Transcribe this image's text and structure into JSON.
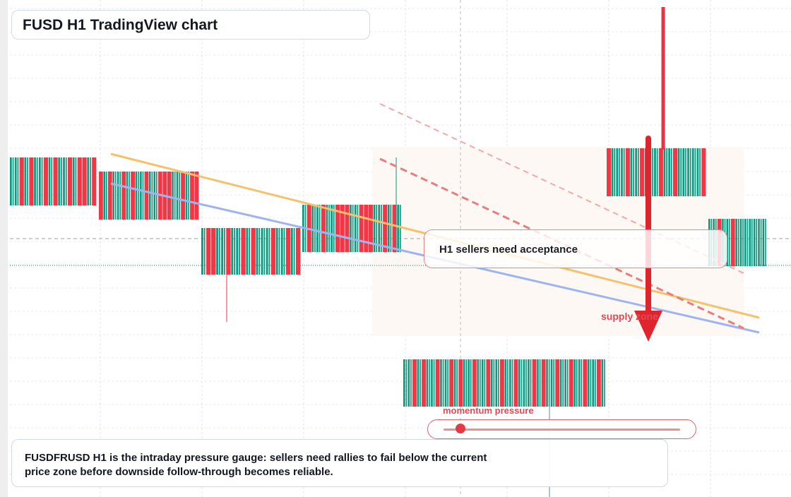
{
  "title": "FUSD H1 TradingView chart",
  "callout": "H1 sellers need acceptance",
  "zone_label": "supply zone",
  "momentum": {
    "label": "momentum pressure",
    "level": 0.07
  },
  "note": "FUSDFRUSD H1 is the intraday pressure gauge: sellers need rallies to fail below the current price zone before downside follow-through becomes reliable.",
  "colors": {
    "bull": "#089981",
    "bear": "#f23645",
    "trend_orange": "#f7c06a",
    "trend_blue": "#9db4f0",
    "channel_red": "#e87d7d",
    "arrow_red": "#e0242e",
    "zone_fill": "#fdf8f4"
  },
  "chart_data": {
    "type": "candlestick",
    "timeframe": "H1",
    "symbol": "FUSD",
    "grid": true,
    "annotations": [
      "supply zone",
      "H1 sellers need acceptance",
      "momentum pressure"
    ],
    "trend_bias": "bearish"
  }
}
